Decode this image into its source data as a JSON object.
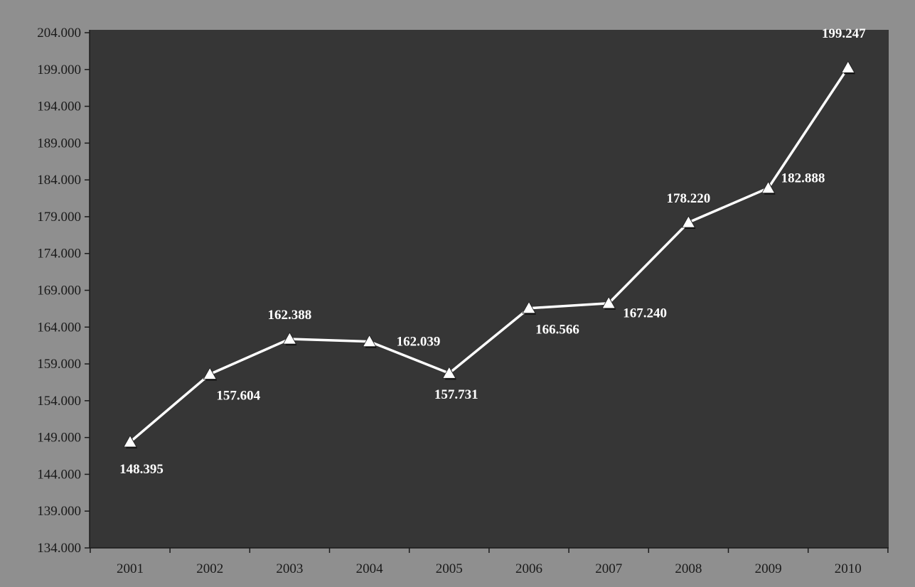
{
  "chart_data": {
    "type": "line",
    "title": "",
    "xlabel": "",
    "ylabel": "",
    "categories": [
      "2001",
      "2002",
      "2003",
      "2004",
      "2005",
      "2006",
      "2007",
      "2008",
      "2009",
      "2010"
    ],
    "series": [
      {
        "values": [
          148395,
          157604,
          162388,
          162039,
          157731,
          166566,
          167240,
          178220,
          182888,
          199247
        ],
        "labels": [
          "148.395",
          "157.604",
          "162.388",
          "162.039",
          "157.731",
          "166.566",
          "167.240",
          "178.220",
          "182.888",
          "199.247"
        ],
        "label_side": [
          "below",
          "below",
          "above",
          "right",
          "below",
          "below",
          "right",
          "above",
          "right",
          "above"
        ],
        "marker": "triangle",
        "line_color": "#ffffff",
        "marker_color": "#ffffff"
      }
    ],
    "ylim": [
      134000,
      204000
    ],
    "y_ticks": [
      "134.000",
      "139.000",
      "144.000",
      "149.000",
      "154.000",
      "159.000",
      "164.000",
      "169.000",
      "174.000",
      "179.000",
      "184.000",
      "189.000",
      "194.000",
      "199.000",
      "204.000"
    ],
    "grid": false,
    "legend": "none",
    "colors": {
      "page_background": "#8f8f8f",
      "plot_background": "#363636",
      "axis": "#1a1a1a",
      "tick_text": "#1a1a1a",
      "data_label_text": "#ffffff"
    }
  }
}
